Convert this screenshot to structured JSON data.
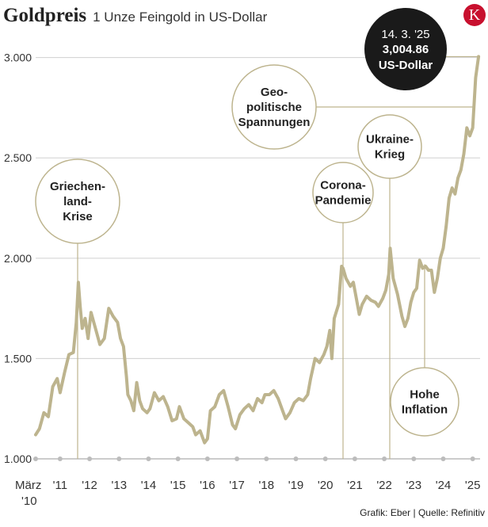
{
  "header": {
    "title": "Goldpreis",
    "subtitle": "1 Unze Feingold in US-Dollar"
  },
  "logo": {
    "letter": "K",
    "color": "#c8102e"
  },
  "source": "Grafik: Eber | Quelle: Refinitiv",
  "callout": {
    "date": "14. 3. '25",
    "value": "3,004.86",
    "unit": "US-Dollar",
    "bg": "#1a1a1a"
  },
  "colors": {
    "line": "#bdb48e",
    "grid": "#d0d0d0",
    "marker": "#bcbcbc",
    "annotation": "#bdb48e"
  },
  "chart_data": {
    "type": "line",
    "title": "Goldpreis",
    "subtitle": "1 Unze Feingold in US-Dollar",
    "ylim": [
      1000,
      3050
    ],
    "yticks": [
      1000,
      1500,
      2000,
      2500,
      3000
    ],
    "ytick_labels": [
      "1.000",
      "1.500",
      "2.000",
      "2.500",
      "3.000"
    ],
    "xlim": [
      2010.17,
      2025.25
    ],
    "xticks": [
      {
        "x": 2010.17,
        "label": "März",
        "label2": "'10"
      },
      {
        "x": 2011,
        "label": "'11"
      },
      {
        "x": 2012,
        "label": "'12"
      },
      {
        "x": 2013,
        "label": "'13"
      },
      {
        "x": 2014,
        "label": "'14"
      },
      {
        "x": 2015,
        "label": "'15"
      },
      {
        "x": 2016,
        "label": "'16"
      },
      {
        "x": 2017,
        "label": "'17"
      },
      {
        "x": 2018,
        "label": "'18"
      },
      {
        "x": 2019,
        "label": "'19"
      },
      {
        "x": 2020,
        "label": "'20"
      },
      {
        "x": 2021,
        "label": "'21"
      },
      {
        "x": 2022,
        "label": "'22"
      },
      {
        "x": 2023,
        "label": "'23"
      },
      {
        "x": 2024,
        "label": "'24"
      },
      {
        "x": 2025,
        "label": "'25"
      }
    ],
    "series": [
      {
        "x": [
          2010.17,
          2010.3,
          2010.45,
          2010.6,
          2010.75,
          2010.9,
          2011.0,
          2011.15,
          2011.3,
          2011.45,
          2011.55,
          2011.62,
          2011.68,
          2011.75,
          2011.85,
          2011.95,
          2012.05,
          2012.2,
          2012.35,
          2012.5,
          2012.65,
          2012.8,
          2012.95,
          2013.05,
          2013.15,
          2013.25,
          2013.3,
          2013.4,
          2013.5,
          2013.6,
          2013.7,
          2013.8,
          2013.95,
          2014.05,
          2014.2,
          2014.35,
          2014.5,
          2014.65,
          2014.8,
          2014.95,
          2015.05,
          2015.2,
          2015.35,
          2015.5,
          2015.6,
          2015.75,
          2015.9,
          2016.0,
          2016.1,
          2016.25,
          2016.4,
          2016.55,
          2016.7,
          2016.85,
          2016.95,
          2017.1,
          2017.25,
          2017.4,
          2017.55,
          2017.7,
          2017.85,
          2017.95,
          2018.1,
          2018.25,
          2018.4,
          2018.55,
          2018.65,
          2018.8,
          2018.95,
          2019.1,
          2019.25,
          2019.4,
          2019.5,
          2019.65,
          2019.8,
          2019.95,
          2020.05,
          2020.15,
          2020.22,
          2020.3,
          2020.45,
          2020.55,
          2020.6,
          2020.7,
          2020.85,
          2020.95,
          2021.05,
          2021.15,
          2021.25,
          2021.4,
          2021.55,
          2021.7,
          2021.8,
          2021.95,
          2022.05,
          2022.15,
          2022.2,
          2022.3,
          2022.45,
          2022.6,
          2022.7,
          2022.8,
          2022.9,
          2023.0,
          2023.1,
          2023.2,
          2023.3,
          2023.4,
          2023.5,
          2023.6,
          2023.7,
          2023.8,
          2023.9,
          2024.0,
          2024.1,
          2024.2,
          2024.3,
          2024.4,
          2024.5,
          2024.6,
          2024.7,
          2024.8,
          2024.9,
          2025.0,
          2025.1,
          2025.2
        ],
        "y": [
          1120,
          1150,
          1230,
          1210,
          1360,
          1400,
          1330,
          1430,
          1520,
          1530,
          1680,
          1880,
          1760,
          1650,
          1700,
          1600,
          1730,
          1650,
          1570,
          1600,
          1750,
          1710,
          1680,
          1600,
          1560,
          1410,
          1320,
          1290,
          1240,
          1380,
          1290,
          1250,
          1230,
          1250,
          1330,
          1290,
          1310,
          1260,
          1190,
          1200,
          1260,
          1200,
          1180,
          1160,
          1120,
          1140,
          1080,
          1100,
          1240,
          1260,
          1320,
          1340,
          1260,
          1170,
          1150,
          1220,
          1250,
          1270,
          1240,
          1300,
          1280,
          1320,
          1320,
          1340,
          1300,
          1240,
          1200,
          1230,
          1280,
          1300,
          1290,
          1320,
          1400,
          1500,
          1480,
          1520,
          1560,
          1640,
          1500,
          1700,
          1770,
          1960,
          1950,
          1900,
          1860,
          1880,
          1800,
          1720,
          1770,
          1810,
          1790,
          1780,
          1760,
          1800,
          1840,
          1920,
          2050,
          1900,
          1820,
          1710,
          1660,
          1700,
          1780,
          1830,
          1850,
          1990,
          1950,
          1960,
          1940,
          1940,
          1830,
          1900,
          2000,
          2050,
          2160,
          2300,
          2350,
          2320,
          2400,
          2440,
          2520,
          2650,
          2610,
          2650,
          2900,
          3004.86
        ]
      }
    ],
    "annotations": [
      {
        "label": "Griechen-|land-|Krise",
        "x": 2011.62,
        "y": 1880
      },
      {
        "label": "Corona-|Pandemie",
        "x": 2020.6,
        "y": 2060
      },
      {
        "label": "Ukraine-|Krieg",
        "x": 2022.2,
        "y": 2050
      },
      {
        "label": "Geo-|politische|Spannungen",
        "x": 2025.05,
        "y": 2700
      },
      {
        "label": "Hohe|Inflation",
        "x": 2023.4,
        "y": 1970
      }
    ]
  }
}
